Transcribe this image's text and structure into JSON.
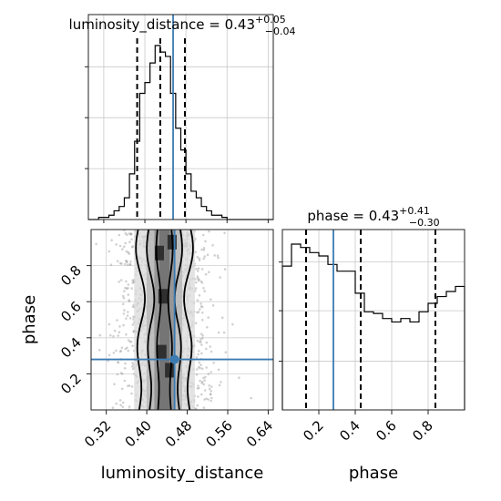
{
  "chart_data": {
    "type": "corner",
    "parameters": [
      "luminosity_distance",
      "phase"
    ],
    "xlabels": [
      "luminosity_distance",
      "phase"
    ],
    "ylabels": [
      "",
      "phase"
    ],
    "titles": [
      {
        "name": "luminosity_distance",
        "value": "0.43",
        "upper": "+0.05",
        "lower": "−0.04"
      },
      {
        "name": "phase",
        "value": "0.43",
        "upper": "+0.41",
        "lower": "−0.30"
      }
    ],
    "truth": {
      "luminosity_distance": 0.455,
      "phase": 0.28
    },
    "luminosity_distance": {
      "xlim": [
        0.29,
        0.65
      ],
      "ticks": [
        "0.32",
        "0.40",
        "0.48",
        "0.56",
        "0.64"
      ],
      "tick_values": [
        0.32,
        0.4,
        0.48,
        0.56,
        0.64
      ],
      "quantiles": [
        0.385,
        0.43,
        0.478
      ],
      "hist_bin_edges": [
        0.29,
        0.3,
        0.31,
        0.32,
        0.33,
        0.34,
        0.35,
        0.36,
        0.37,
        0.38,
        0.39,
        0.4,
        0.41,
        0.42,
        0.43,
        0.44,
        0.45,
        0.46,
        0.47,
        0.48,
        0.49,
        0.5,
        0.51,
        0.52,
        0.53,
        0.54,
        0.55,
        0.56,
        0.57,
        0.58,
        0.59,
        0.6,
        0.61,
        0.62,
        0.63,
        0.64,
        0.65
      ],
      "hist_counts": [
        0,
        0,
        1,
        1,
        2,
        4,
        6,
        10,
        21,
        36,
        58,
        63,
        72,
        80,
        77,
        75,
        58,
        42,
        32,
        21,
        13,
        10,
        6,
        4,
        2,
        2,
        1,
        0,
        0,
        0,
        0,
        0,
        0,
        0,
        0,
        0
      ]
    },
    "phase": {
      "xlim": [
        0.0,
        1.0
      ],
      "ylim": [
        0.0,
        1.0
      ],
      "ticks": [
        "0.2",
        "0.4",
        "0.6",
        "0.8"
      ],
      "tick_values": [
        0.2,
        0.4,
        0.6,
        0.8
      ],
      "quantiles": [
        0.13,
        0.43,
        0.84
      ],
      "hist_bin_edges": [
        0.0,
        0.05,
        0.1,
        0.15,
        0.2,
        0.25,
        0.3,
        0.35,
        0.4,
        0.45,
        0.5,
        0.55,
        0.6,
        0.65,
        0.7,
        0.75,
        0.8,
        0.85,
        0.9,
        0.95,
        1.0
      ],
      "hist_counts": [
        85,
        98,
        96,
        93,
        91,
        86,
        82,
        82,
        69,
        58,
        57,
        54,
        52,
        54,
        52,
        58,
        63,
        67,
        70,
        73
      ]
    },
    "grid": true
  }
}
